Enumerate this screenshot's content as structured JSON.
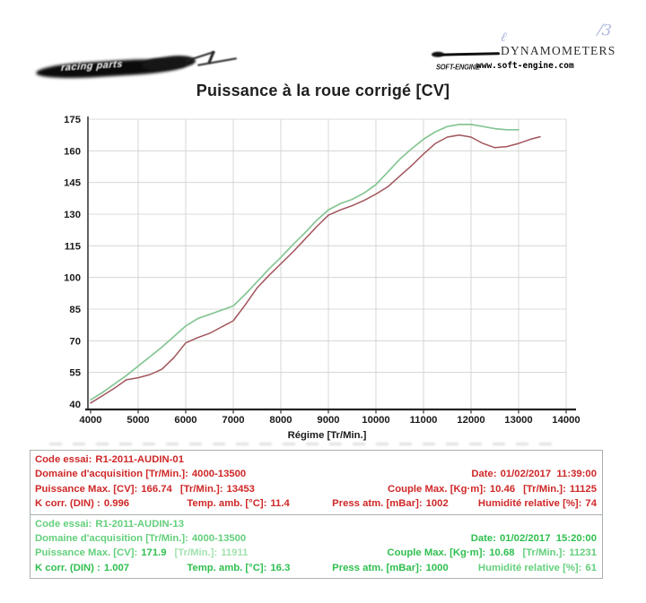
{
  "header": {
    "stamp_text": "racing parts",
    "handwriting_left": "ℓ",
    "handwriting_right": "/3",
    "brand": "DYNAMOMETERS",
    "logo": "SOFT-ENGINE",
    "url": "www.soft-engine.com"
  },
  "title": "Puissance à la roue corrigé [CV]",
  "chart_data": {
    "type": "line",
    "title": "Puissance à la roue corrigé [CV]",
    "xlabel": "Régime [Tr/Min.]",
    "ylabel": "",
    "xlim": [
      4000,
      14000
    ],
    "ylim": [
      40,
      175
    ],
    "x_ticks": [
      4000,
      5000,
      6000,
      7000,
      8000,
      9000,
      10000,
      11000,
      12000,
      13000,
      14000
    ],
    "y_ticks": [
      40,
      55,
      70,
      85,
      100,
      115,
      130,
      145,
      160,
      175
    ],
    "grid": true,
    "legend": "none",
    "series": [
      {
        "name": "R1-2011-AUDIN-01",
        "color": "#a2545c",
        "x": [
          4000,
          4250,
          4500,
          4750,
          5000,
          5250,
          5500,
          5750,
          6000,
          6250,
          6500,
          6750,
          7000,
          7250,
          7500,
          7750,
          8000,
          8250,
          8500,
          8750,
          9000,
          9250,
          9500,
          9750,
          10000,
          10250,
          10500,
          10750,
          11000,
          11250,
          11500,
          11750,
          12000,
          12250,
          12500,
          12750,
          13000,
          13250,
          13453
        ],
        "values": [
          40.5,
          44,
          47.5,
          51.5,
          52.5,
          54,
          56.5,
          62,
          69,
          71.5,
          73.5,
          76.5,
          79.5,
          87,
          95,
          101,
          106.5,
          112,
          118,
          124,
          129.5,
          132,
          134,
          136.5,
          139.5,
          143,
          148,
          153,
          158.5,
          163.5,
          166.5,
          167.5,
          166.5,
          163.5,
          161.5,
          162,
          163.5,
          165.5,
          166.7
        ]
      },
      {
        "name": "R1-2011-AUDIN-13",
        "color": "#85c694",
        "x": [
          4000,
          4250,
          4500,
          4750,
          5000,
          5250,
          5500,
          5750,
          6000,
          6250,
          6500,
          6750,
          7000,
          7250,
          7500,
          7750,
          8000,
          8250,
          8500,
          8750,
          9000,
          9250,
          9500,
          9750,
          10000,
          10250,
          10500,
          10750,
          11000,
          11250,
          11500,
          11750,
          12000,
          12250,
          12500,
          12750,
          13000
        ],
        "values": [
          42,
          45.5,
          49.5,
          53.5,
          58,
          62.5,
          67,
          72,
          77,
          80.5,
          82.5,
          84.5,
          86.5,
          92,
          98,
          104,
          109.5,
          115.5,
          121,
          127,
          132,
          135,
          137,
          140,
          144,
          150,
          156,
          161,
          165.5,
          169,
          171.5,
          172.5,
          172.5,
          171.5,
          170.5,
          170,
          170
        ]
      }
    ]
  },
  "tests": [
    {
      "code_label": "Code essai:",
      "code": "R1-2011-AUDIN-01",
      "domain_label": "Domaine d'acquisition [Tr/Min.]:",
      "domain": "4000-13500",
      "date_label": "Date:",
      "date": "01/02/2017  11:39:00",
      "power_label": "Puissance Max. [CV]:",
      "power": "166.74",
      "power_rpm_label": "[Tr/Min.]:",
      "power_rpm": "13453",
      "torque_label": "Couple Max. [Kg·m]:",
      "torque": "10.46",
      "torque_rpm_label": "[Tr/Min.]:",
      "torque_rpm": "11125",
      "k_label": "K corr. (DIN) :",
      "k": "0.996",
      "temp_label": "Temp. amb. [°C]:",
      "temp": "11.4",
      "press_label": "Press atm. [mBar]:",
      "press": "1002",
      "humidity_label": "Humidité relative [%]:",
      "humidity": "74"
    },
    {
      "code_label": "Code essai:",
      "code": "R1-2011-AUDIN-13",
      "domain_label": "Domaine d'acquisition [Tr/Min.]:",
      "domain": "4000-13500",
      "date_label": "Date:",
      "date": "01/02/2017  15:20:00",
      "power_label": "Puissance Max. [CV]:",
      "power": "171.9",
      "power_rpm_label": "[Tr/Min.]:",
      "power_rpm": "11911",
      "torque_label": "Couple Max. [Kg·m]:",
      "torque": "10.68",
      "torque_rpm_label": "[Tr/Min.]:",
      "torque_rpm": "11231",
      "k_label": "K corr. (DIN) :",
      "k": "1.007",
      "temp_label": "Temp. amb. [°C]:",
      "temp": "16.3",
      "press_label": "Press atm. [mBar]:",
      "press": "1000",
      "humidity_label": "Humidité relative [%]:",
      "humidity": "61"
    }
  ]
}
